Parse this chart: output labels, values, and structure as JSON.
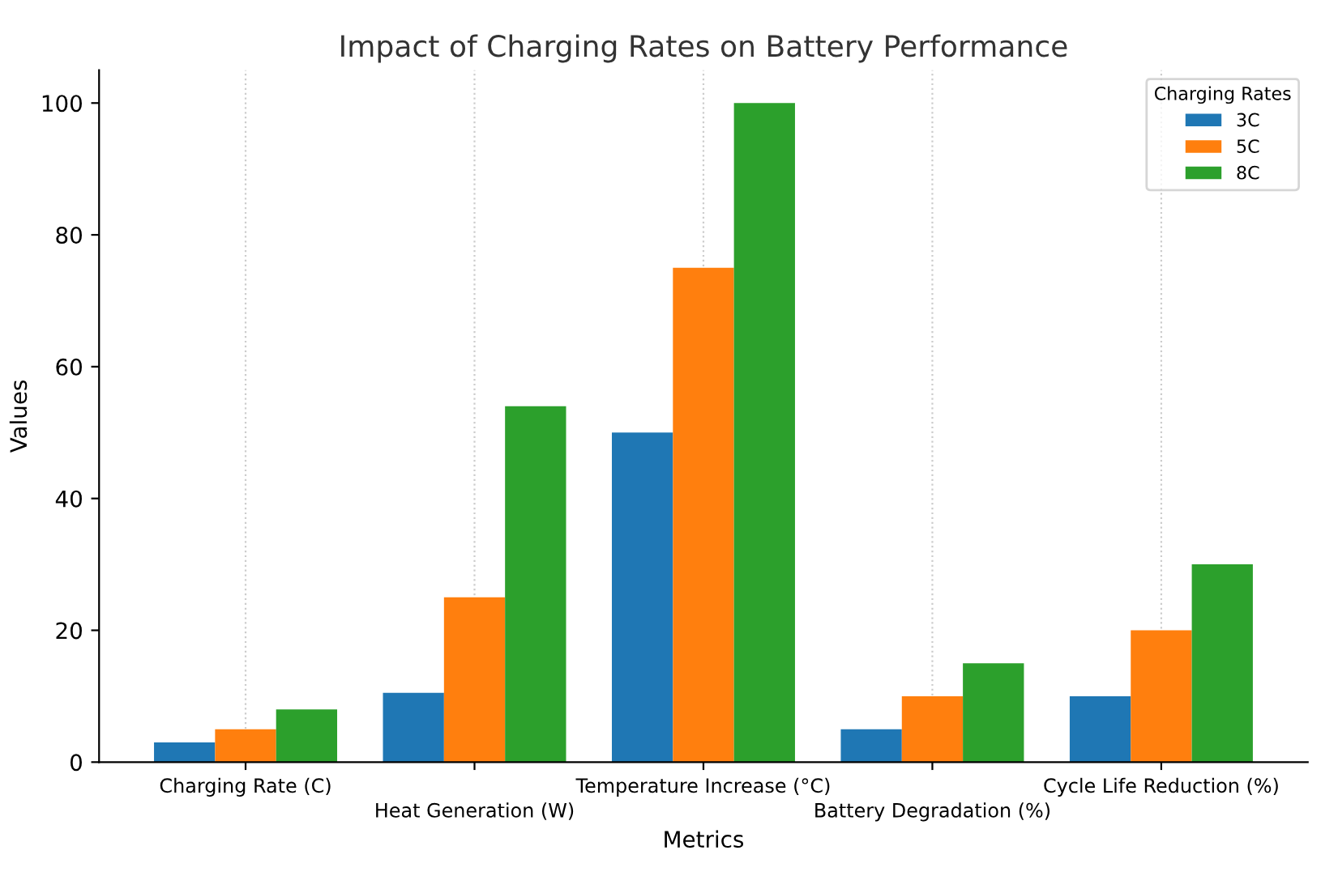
{
  "chart_data": {
    "type": "bar",
    "title": "Impact of Charging Rates on Battery Performance",
    "xlabel": "Metrics",
    "ylabel": "Values",
    "legend_title": "Charging Rates",
    "categories": [
      "Charging Rate (C)",
      "Heat Generation (W)",
      "Temperature Increase (°C)",
      "Battery Degradation (%)",
      "Cycle Life Reduction (%)"
    ],
    "series": [
      {
        "name": "3C",
        "color": "#1f77b4",
        "values": [
          3,
          10.5,
          50,
          5,
          10
        ]
      },
      {
        "name": "5C",
        "color": "#ff7f0e",
        "values": [
          5,
          25,
          75,
          10,
          20
        ]
      },
      {
        "name": "8C",
        "color": "#2ca02c",
        "values": [
          8,
          54,
          100,
          15,
          30
        ]
      }
    ],
    "ylim": [
      0,
      105
    ],
    "yticks": [
      0,
      20,
      40,
      60,
      80,
      100
    ],
    "grid": "x",
    "legend": "top right"
  }
}
